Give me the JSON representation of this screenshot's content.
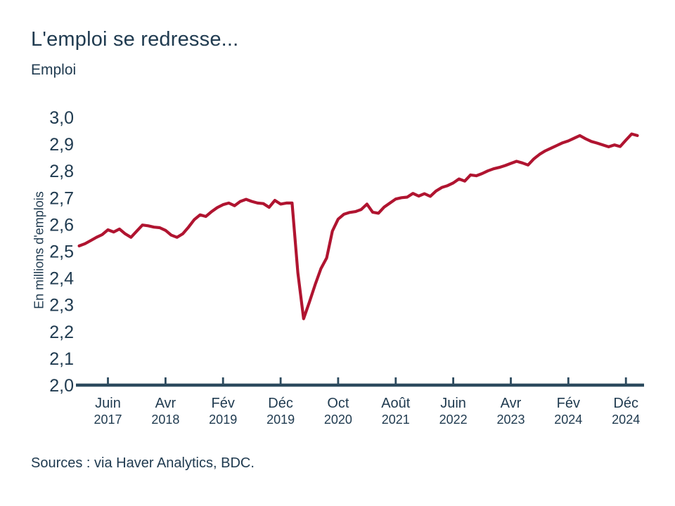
{
  "page": {
    "title": "L'emploi se redresse...",
    "subtitle": "Emploi",
    "source_note": "Sources : via Haver Analytics, BDC.",
    "background_color": "#ffffff",
    "text_color": "#203b50"
  },
  "chart_data": {
    "type": "line",
    "title": "L'emploi se redresse...",
    "subtitle": "Emploi",
    "ylabel": "En millions d'emplois",
    "xlabel": "",
    "grid": false,
    "legend": false,
    "line_color": "#b01430",
    "axis_color": "#2c4a5e",
    "ylim": [
      2.0,
      3.0
    ],
    "y_tick_step": 0.1,
    "y_tick_labels": [
      "3,0",
      "2,9",
      "2,8",
      "2,7",
      "2,6",
      "2,5",
      "2,4",
      "2,3",
      "2,2",
      "2,1",
      "2,0"
    ],
    "frequency": "monthly",
    "start": "2017-01",
    "end": "2025-02",
    "x_ticks": [
      {
        "month": "Juin",
        "year": "2017",
        "index": 5
      },
      {
        "month": "Avr",
        "year": "2018",
        "index": 15
      },
      {
        "month": "Fév",
        "year": "2019",
        "index": 25
      },
      {
        "month": "Déc",
        "year": "2019",
        "index": 35
      },
      {
        "month": "Oct",
        "year": "2020",
        "index": 45
      },
      {
        "month": "Août",
        "year": "2021",
        "index": 55
      },
      {
        "month": "Juin",
        "year": "2022",
        "index": 65
      },
      {
        "month": "Avr",
        "year": "2023",
        "index": 75
      },
      {
        "month": "Fév",
        "year": "2024",
        "index": 85
      },
      {
        "month": "Déc",
        "year": "2024",
        "index": 95
      }
    ],
    "series": [
      {
        "name": "Emploi",
        "unit": "millions d'emplois",
        "values": [
          2.52,
          2.528,
          2.54,
          2.552,
          2.562,
          2.58,
          2.572,
          2.583,
          2.565,
          2.552,
          2.575,
          2.598,
          2.595,
          2.59,
          2.588,
          2.578,
          2.56,
          2.552,
          2.565,
          2.59,
          2.618,
          2.636,
          2.63,
          2.648,
          2.663,
          2.674,
          2.68,
          2.67,
          2.686,
          2.694,
          2.686,
          2.68,
          2.678,
          2.664,
          2.69,
          2.676,
          2.68,
          2.68,
          2.42,
          2.248,
          2.31,
          2.375,
          2.435,
          2.475,
          2.575,
          2.62,
          2.638,
          2.645,
          2.648,
          2.656,
          2.676,
          2.646,
          2.642,
          2.665,
          2.68,
          2.695,
          2.7,
          2.702,
          2.716,
          2.706,
          2.715,
          2.705,
          2.725,
          2.738,
          2.745,
          2.755,
          2.77,
          2.762,
          2.785,
          2.782,
          2.79,
          2.8,
          2.808,
          2.813,
          2.82,
          2.828,
          2.836,
          2.83,
          2.822,
          2.845,
          2.862,
          2.875,
          2.885,
          2.895,
          2.905,
          2.912,
          2.922,
          2.932,
          2.92,
          2.91,
          2.904,
          2.897,
          2.89,
          2.897,
          2.891,
          2.915,
          2.938,
          2.932
        ]
      }
    ]
  }
}
